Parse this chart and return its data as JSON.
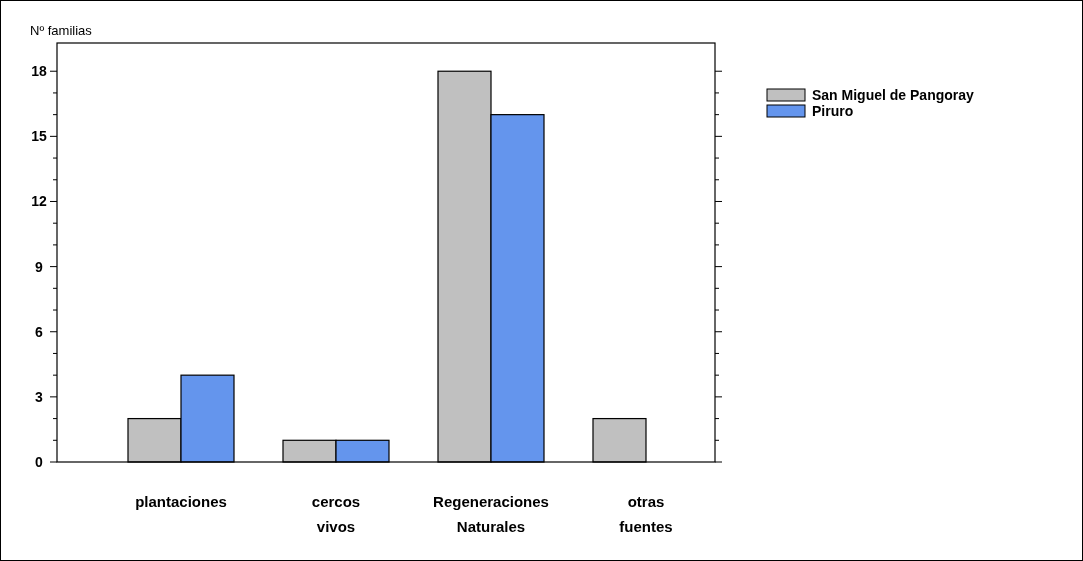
{
  "chart_data": {
    "type": "bar",
    "ylabel": "Nº familias",
    "categories": [
      "plantaciones",
      "cercos vivos",
      "Regeneraciones Naturales",
      "otras fuentes"
    ],
    "series": [
      {
        "name": "San Miguel de Pangoray",
        "color": "#c0c0c0",
        "values": [
          2,
          1,
          18,
          2
        ]
      },
      {
        "name": "Piruro",
        "color": "#6495ed",
        "values": [
          4,
          1,
          16,
          0
        ]
      }
    ],
    "ylim": [
      0,
      19.3
    ],
    "yticks": [
      0,
      {
        "value": 1,
        "label": null
      },
      {
        "value": 2,
        "label": null
      },
      3,
      {
        "value": 4,
        "label": null
      },
      {
        "value": 5,
        "label": null
      },
      6,
      {
        "value": 7,
        "label": null
      },
      {
        "value": 8,
        "label": null
      },
      9,
      {
        "value": 10,
        "label": null
      },
      {
        "value": 11,
        "label": null
      },
      12,
      {
        "value": 13,
        "label": null
      },
      {
        "value": 14,
        "label": null
      },
      15,
      {
        "value": 16,
        "label": null
      },
      {
        "value": 17,
        "label": null
      },
      18
    ],
    "grid": false,
    "legend": "top right"
  }
}
